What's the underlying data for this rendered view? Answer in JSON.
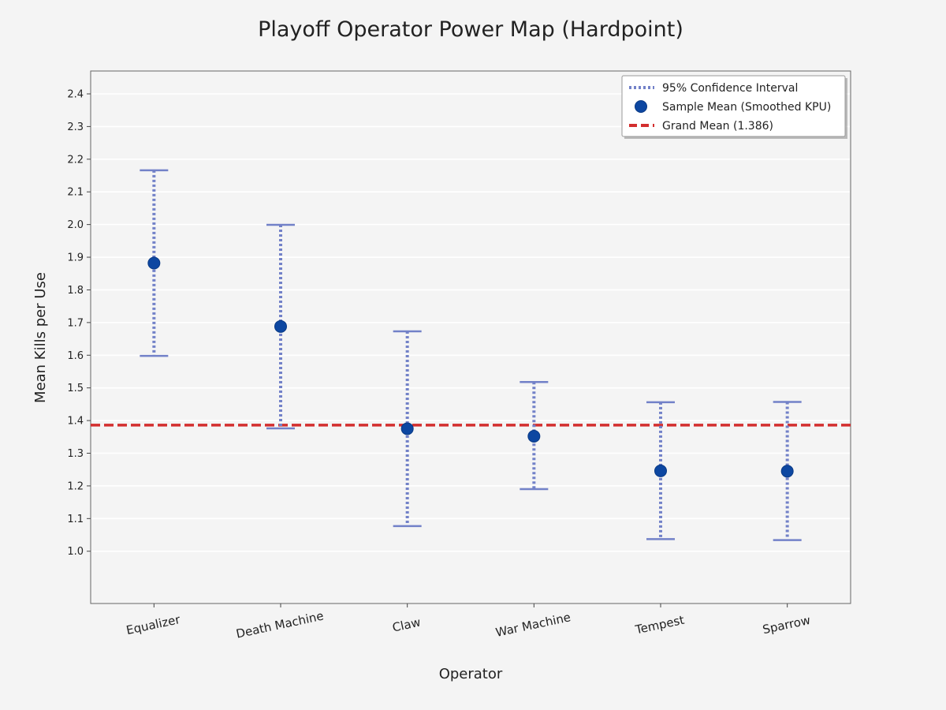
{
  "chart_data": {
    "type": "errorbar",
    "title": "Playoff Operator Power Map (Hardpoint)",
    "xlabel": "Operator",
    "ylabel": "Mean Kills per Use",
    "categories": [
      "Equalizer",
      "Death Machine",
      "Claw",
      "War Machine",
      "Tempest",
      "Sparrow"
    ],
    "means": [
      1.882,
      1.688,
      1.375,
      1.352,
      1.246,
      1.245
    ],
    "ci_low": [
      1.598,
      1.376,
      1.077,
      1.19,
      1.037,
      1.034
    ],
    "ci_high": [
      2.166,
      1.999,
      1.673,
      1.518,
      1.456,
      1.457
    ],
    "grand_mean": 1.386,
    "ylim": [
      0.84,
      2.47
    ],
    "yticks": [
      "1.0",
      "1.1",
      "1.2",
      "1.3",
      "1.4",
      "1.5",
      "1.6",
      "1.7",
      "1.8",
      "1.9",
      "2.0",
      "2.1",
      "2.2",
      "2.3",
      "2.4"
    ],
    "grid": true,
    "legend_position": "top-right",
    "legend": {
      "ci": "95% Confidence Interval",
      "mean": "Sample Mean (Smoothed KPU)",
      "grand_mean": "Grand Mean (1.386)"
    },
    "colors": {
      "ci": "#7281c8",
      "mean": "#0d47a1",
      "grand_mean": "#d32f2f",
      "grid": "#ffffff",
      "background": "#f4f4f4"
    }
  }
}
